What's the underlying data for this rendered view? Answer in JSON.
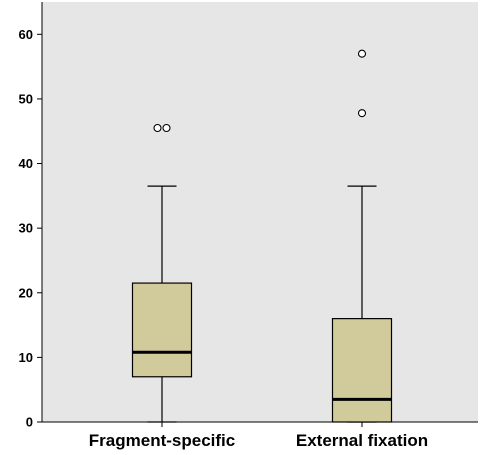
{
  "chart_data": {
    "type": "box",
    "title": "",
    "xlabel": "",
    "ylabel": "",
    "ylim": [
      0,
      65
    ],
    "yticks": [
      0,
      10,
      20,
      30,
      40,
      50,
      60
    ],
    "grid": false,
    "legend": "none",
    "colors": {
      "plot_background": "#e6e6e6",
      "box_fill": "#d1ca9a",
      "stroke": "#000000",
      "page_background": "#ffffff"
    },
    "categories": [
      "Fragment-specific",
      "External fixation"
    ],
    "boxes": [
      {
        "category": "Fragment-specific",
        "whisker_low": 0,
        "q1": 7,
        "median": 10.8,
        "q3": 21.5,
        "whisker_high": 36.5,
        "outliers": [
          45.5,
          45.5
        ]
      },
      {
        "category": "External fixation",
        "whisker_low": 0,
        "q1": 0,
        "median": 3.5,
        "q3": 16,
        "whisker_high": 36.5,
        "outliers": [
          47.8,
          57
        ]
      }
    ]
  }
}
